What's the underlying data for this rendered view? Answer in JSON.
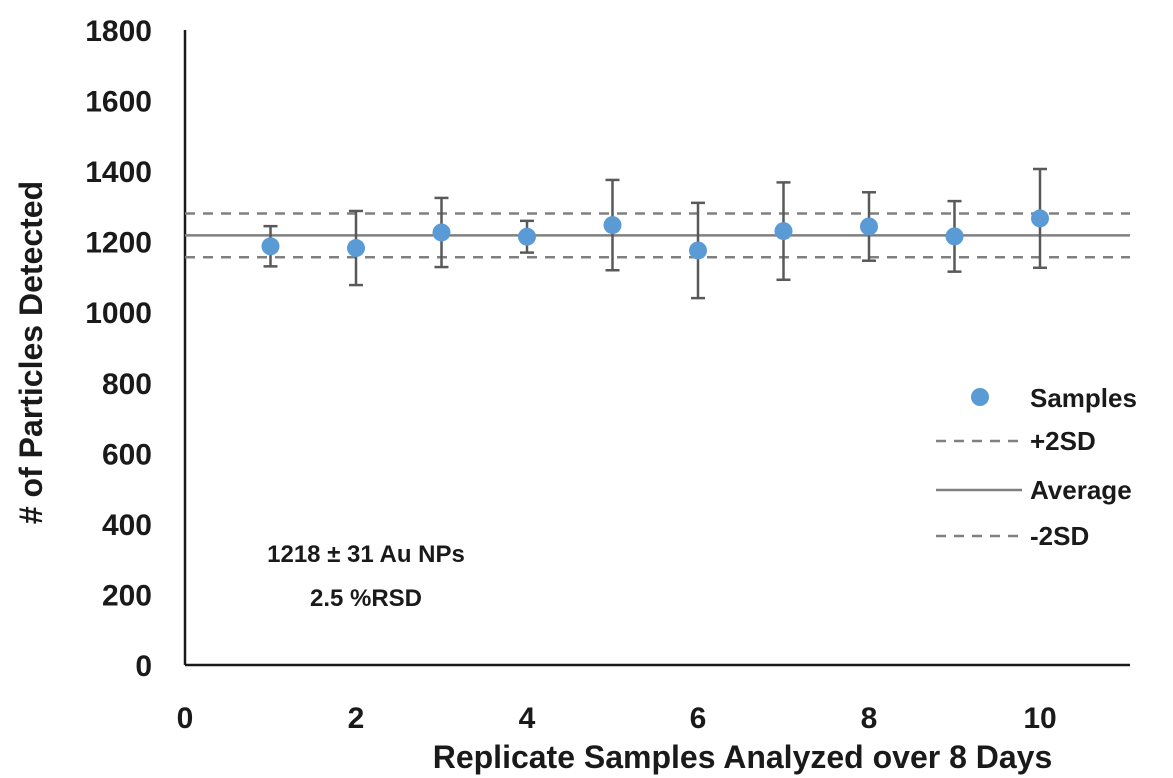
{
  "chart_data": {
    "type": "scatter",
    "xlabel": "Replicate Samples Analyzed over 8 Days",
    "ylabel": "# of Particles Detected",
    "xlim": [
      0,
      11
    ],
    "ylim": [
      0,
      1800
    ],
    "xticks": [
      0,
      2,
      4,
      6,
      8,
      10
    ],
    "yticks": [
      0,
      200,
      400,
      600,
      800,
      1000,
      1200,
      1400,
      1600,
      1800
    ],
    "grid": false,
    "legend_position": "right",
    "series": [
      {
        "name": "Samples",
        "kind": "points",
        "color": "#5b9bd5",
        "x": [
          1,
          2,
          3,
          4,
          5,
          6,
          7,
          8,
          9,
          10
        ],
        "y": [
          1187,
          1182,
          1226,
          1214,
          1247,
          1175,
          1230,
          1243,
          1215,
          1266
        ],
        "err": [
          57,
          105,
          98,
          45,
          128,
          135,
          138,
          97,
          100,
          140
        ]
      },
      {
        "name": "+2SD",
        "kind": "hline",
        "style": "dashed",
        "color": "#808080",
        "value": 1280
      },
      {
        "name": "Average",
        "kind": "hline",
        "style": "solid",
        "color": "#808080",
        "value": 1218
      },
      {
        "name": "-2SD",
        "kind": "hline",
        "style": "dashed",
        "color": "#808080",
        "value": 1156
      }
    ],
    "annotations": [
      "1218 ± 31 Au NPs",
      "2.5 %RSD"
    ]
  }
}
